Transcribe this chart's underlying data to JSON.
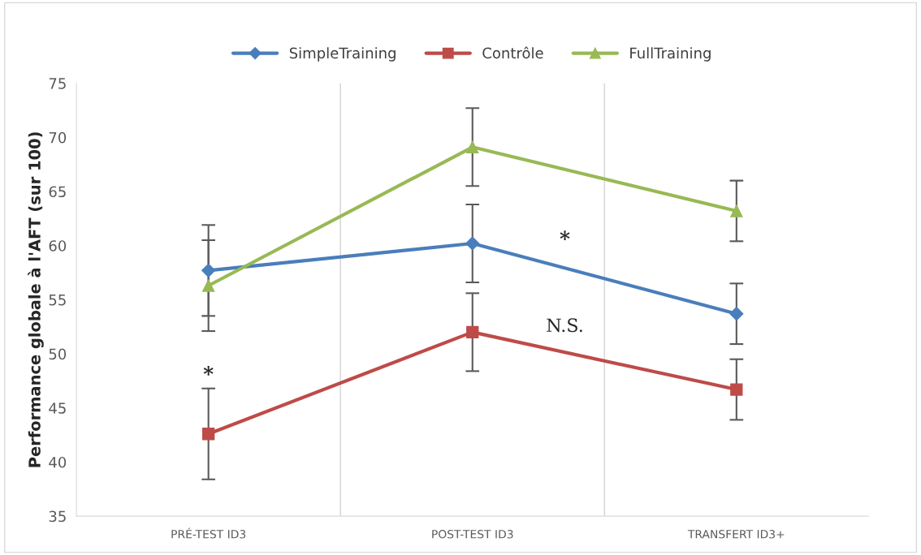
{
  "chart_data": {
    "type": "line",
    "ylabel": "Performance globale à l'AFT (sur 100)",
    "categories": [
      "PRÉ-TEST ID3",
      "POST-TEST ID3",
      "TRANSFERT ID3+"
    ],
    "series": [
      {
        "name": "SimpleTraining",
        "color": "#4a7ebb",
        "values": [
          57.7,
          60.2,
          53.7
        ],
        "errors": [
          4.2,
          3.6,
          2.8
        ],
        "marker": "diamond"
      },
      {
        "name": "Contrôle",
        "color": "#be4b48",
        "values": [
          42.6,
          52.0,
          46.7
        ],
        "errors": [
          4.2,
          3.6,
          2.8
        ],
        "marker": "square"
      },
      {
        "name": "FullTraining",
        "color": "#98b954",
        "values": [
          56.3,
          69.1,
          63.2
        ],
        "errors": [
          4.2,
          3.6,
          2.8
        ],
        "marker": "triangle"
      }
    ],
    "ylim": [
      35,
      75
    ],
    "yticks": [
      35,
      40,
      45,
      50,
      55,
      60,
      65,
      70,
      75
    ],
    "grid": "x",
    "legend": "top",
    "line_style": "solid",
    "annotations": [
      "*",
      "*",
      "N.S."
    ]
  }
}
